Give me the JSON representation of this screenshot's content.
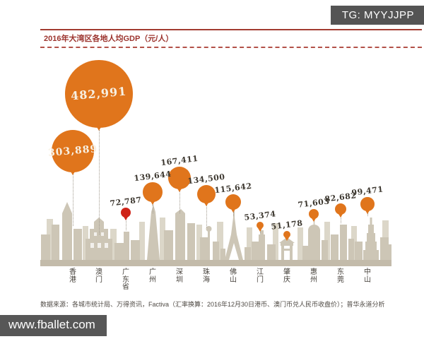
{
  "overlay": {
    "tg_badge": "TG: MYYJJPP",
    "watermark": "www.fballet.com"
  },
  "chart": {
    "title": "2016年大湾区各地人均GDP（元/人）",
    "source_note": "数据来源：各城市统计局、万得资讯，Factiva（汇率换算：2016年12月30日港币、澳门币兑人民币收盘价）；普华永道分析"
  },
  "colors": {
    "balloon": "#e0751c",
    "balloon_highlight": "#cf2318",
    "title_red": "#9c342e",
    "badge_bg": "#545454",
    "skyline_front": "#cdc6b6",
    "skyline_back": "#dcd7c9",
    "ground": "#c3bbaa"
  },
  "chart_data": {
    "type": "bubble",
    "title": "2016年大湾区各地人均GDP（元/人）",
    "unit": "元/人",
    "categories": [
      "香港",
      "澳门",
      "广东省",
      "广州",
      "深圳",
      "珠海",
      "佛山",
      "江门",
      "肇庆",
      "惠州",
      "东莞",
      "中山"
    ],
    "values": [
      303889,
      482991,
      72787,
      139644,
      167411,
      134500,
      115642,
      53374,
      51178,
      71603,
      82682,
      99471
    ],
    "display_values": [
      "303,889",
      "482,991",
      "72,787",
      "139,644",
      "167,411",
      "134,500",
      "115,642",
      "53,374",
      "51,178",
      "71,603",
      "82,682",
      "99,471"
    ],
    "highlight_category": "广东省",
    "bubble_size_rule": "radius proportional to value",
    "legend": "none",
    "grid": "off"
  }
}
